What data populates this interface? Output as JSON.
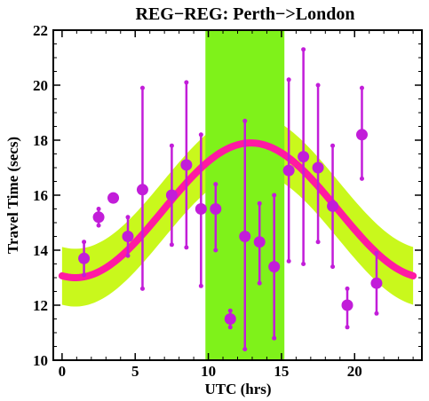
{
  "chart_data": {
    "type": "scatter",
    "title": "REG−REG: Perth−>London",
    "xlabel": "UTC (hrs)",
    "ylabel": "Travel Time (secs)",
    "xlim": [
      -0.6,
      24.6
    ],
    "ylim": [
      10,
      22
    ],
    "xticks": [
      0,
      5,
      10,
      15,
      20
    ],
    "yticks": [
      10,
      12,
      14,
      16,
      18,
      20,
      22
    ],
    "grid": false,
    "legend": "none",
    "highlight_band": {
      "x_start": 9.8,
      "x_end": 15.2,
      "color": "#7ff21a"
    },
    "model_curve": {
      "form": "sinusoid",
      "mean": 15.45,
      "amplitude": 2.45,
      "peak_hour": 12.9,
      "period_hours": 24,
      "band_halfwidth": 1.05,
      "line_color": "#ff1aa3",
      "band_color": "#c9f81c"
    },
    "points": [
      {
        "x": 1.5,
        "y": 13.7,
        "err_low": 13.1,
        "err_high": 14.3
      },
      {
        "x": 2.5,
        "y": 15.2,
        "err_low": 14.9,
        "err_high": 15.5
      },
      {
        "x": 3.5,
        "y": 15.9,
        "err_low": 15.9,
        "err_high": 15.9
      },
      {
        "x": 4.5,
        "y": 14.5,
        "err_low": 13.8,
        "err_high": 15.2
      },
      {
        "x": 5.5,
        "y": 16.2,
        "err_low": 12.6,
        "err_high": 19.9
      },
      {
        "x": 7.5,
        "y": 16.0,
        "err_low": 14.2,
        "err_high": 17.8
      },
      {
        "x": 8.5,
        "y": 17.1,
        "err_low": 14.1,
        "err_high": 20.1
      },
      {
        "x": 9.5,
        "y": 15.5,
        "err_low": 12.7,
        "err_high": 18.2
      },
      {
        "x": 10.5,
        "y": 15.5,
        "err_low": 14.0,
        "err_high": 16.4
      },
      {
        "x": 11.5,
        "y": 11.5,
        "err_low": 11.2,
        "err_high": 11.8
      },
      {
        "x": 12.5,
        "y": 14.5,
        "err_low": 10.4,
        "err_high": 18.7
      },
      {
        "x": 13.5,
        "y": 14.3,
        "err_low": 12.8,
        "err_high": 15.7
      },
      {
        "x": 14.5,
        "y": 13.4,
        "err_low": 10.8,
        "err_high": 16.0
      },
      {
        "x": 15.5,
        "y": 16.9,
        "err_low": 13.6,
        "err_high": 20.2
      },
      {
        "x": 16.5,
        "y": 17.4,
        "err_low": 13.5,
        "err_high": 21.3
      },
      {
        "x": 17.5,
        "y": 17.0,
        "err_low": 14.3,
        "err_high": 20.0
      },
      {
        "x": 18.5,
        "y": 15.6,
        "err_low": 13.4,
        "err_high": 17.8
      },
      {
        "x": 19.5,
        "y": 12.0,
        "err_low": 11.2,
        "err_high": 12.6
      },
      {
        "x": 20.5,
        "y": 18.2,
        "err_low": 16.6,
        "err_high": 19.9
      },
      {
        "x": 21.5,
        "y": 12.8,
        "err_low": 11.7,
        "err_high": 13.9
      }
    ],
    "point_color": "#c21dd9"
  }
}
